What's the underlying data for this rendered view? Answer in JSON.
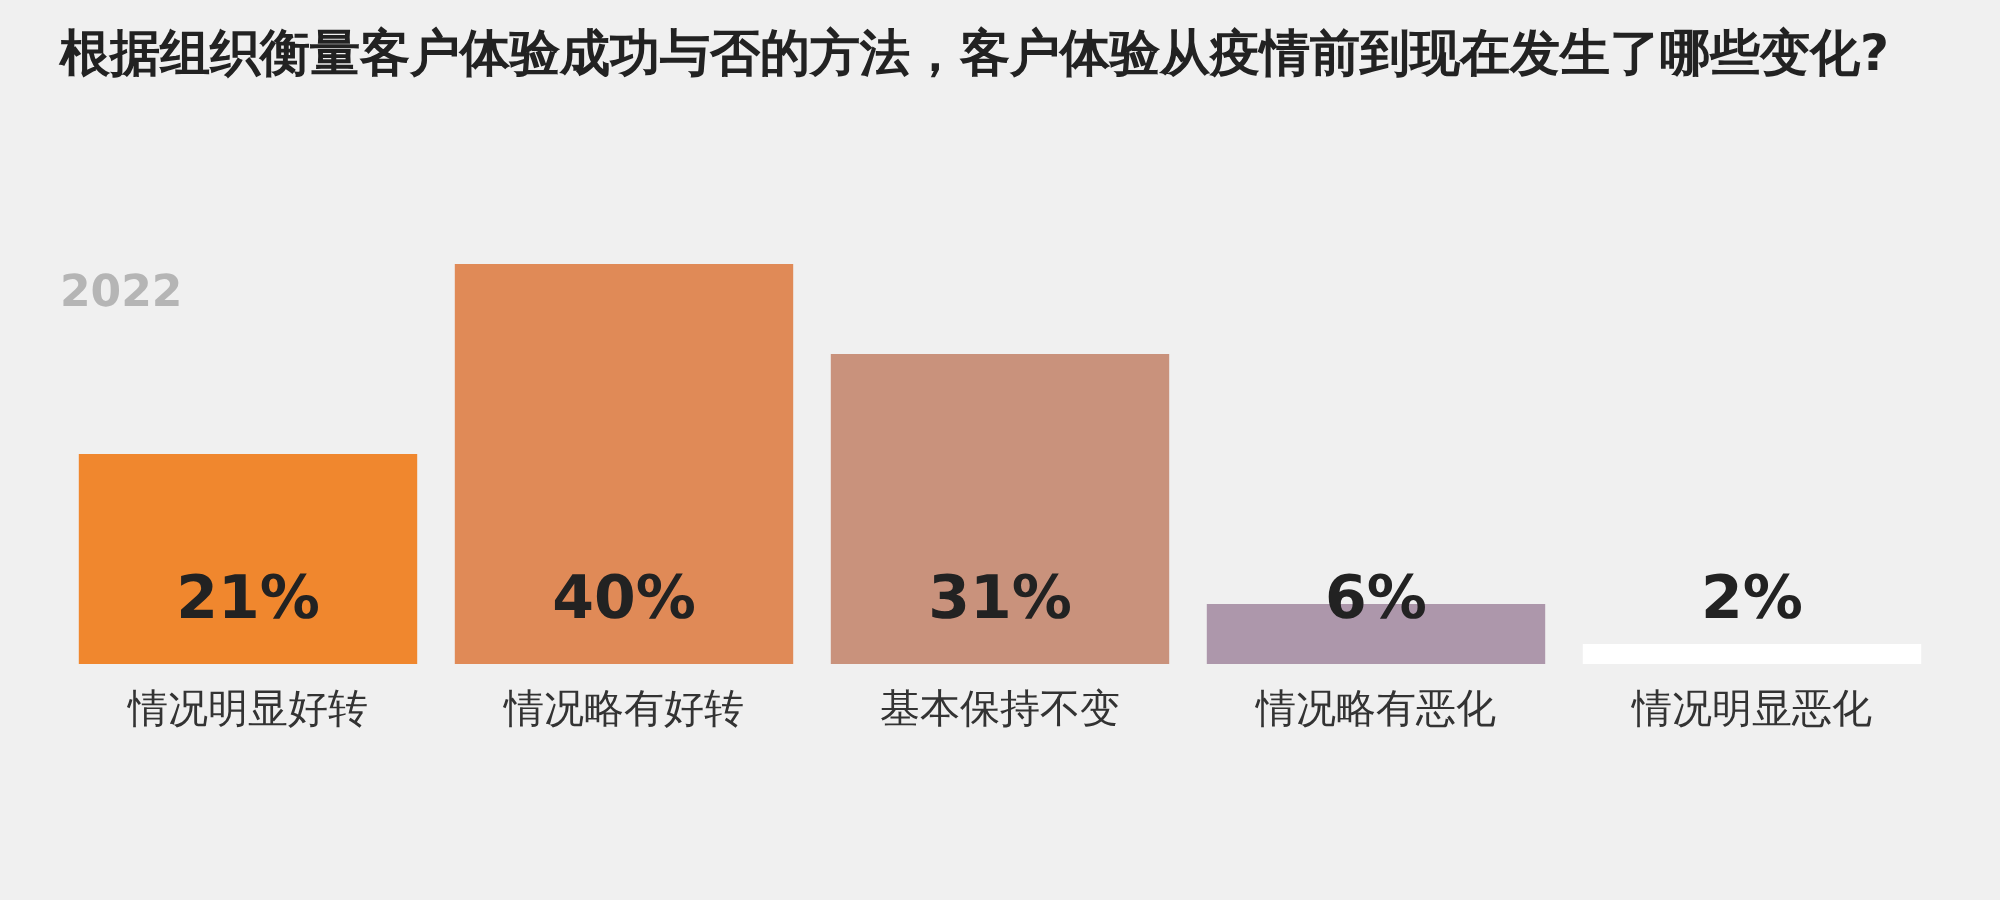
{
  "chart_data": {
    "type": "bar",
    "title": "根据组织衡量客户体验成功与否的方法，客户体验从疫情前到现在发生了哪些变化?",
    "subtitle": "2022",
    "categories": [
      "情况明显好转",
      "情况略有好转",
      "基本保持不变",
      "情况略有恶化",
      "情况明显恶化"
    ],
    "values": [
      21,
      40,
      31,
      6,
      2
    ],
    "colors": [
      "#f0872e",
      "#e08a57",
      "#c9927c",
      "#ad97ab",
      "#ffffff"
    ],
    "value_labels": [
      "21%",
      "40%",
      "31%",
      "6%",
      "2%"
    ],
    "grid": false,
    "legend": false
  }
}
